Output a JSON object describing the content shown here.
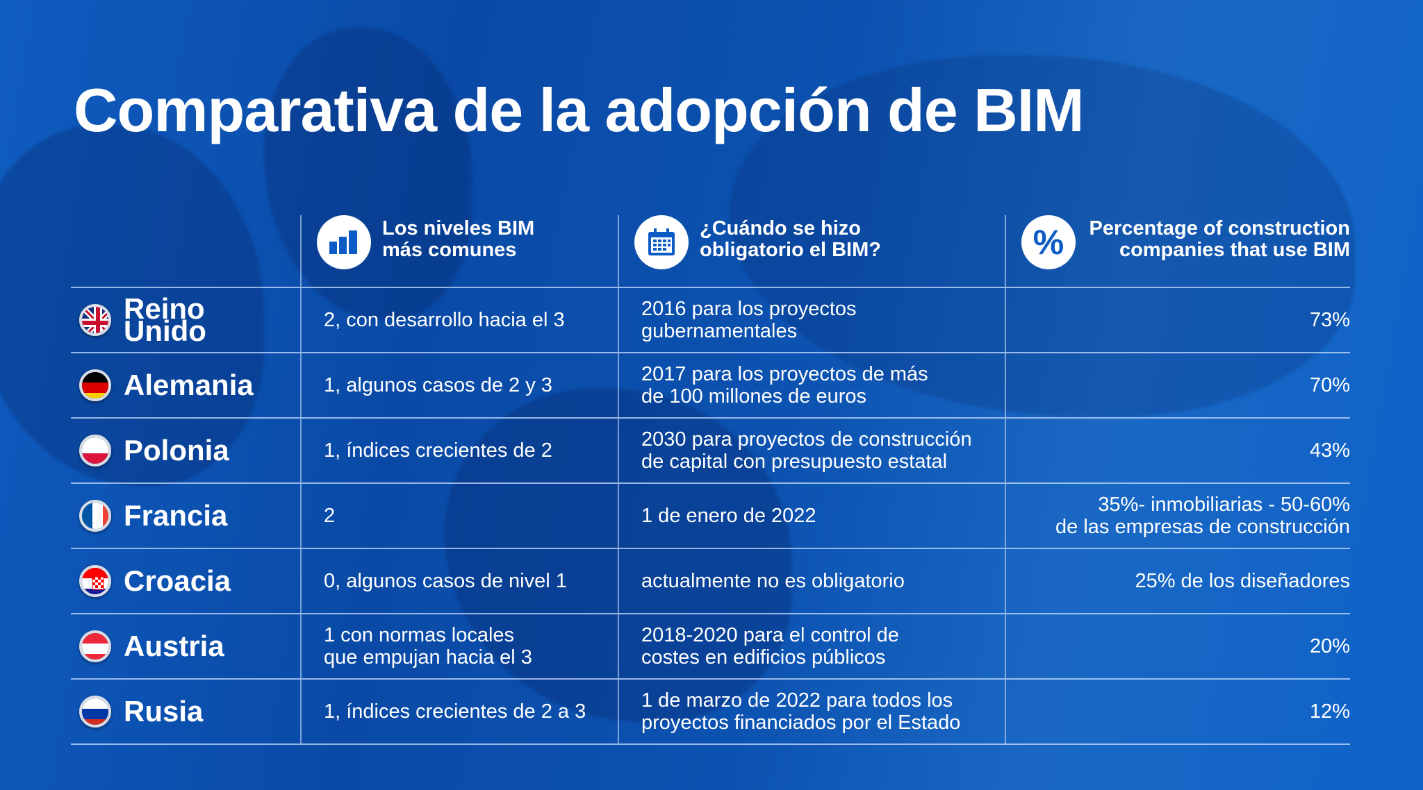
{
  "title": "Comparativa de la adopción de BIM",
  "headers": [
    {
      "label": "Los niveles BIM\nmás comunes",
      "icon": "bar-chart-icon"
    },
    {
      "label": "¿Cuándo se hizo\nobligatorio el BIM?",
      "icon": "calendar-icon"
    },
    {
      "label": "Percentage of construction\ncompanies that use BIM",
      "icon": "percent-icon"
    }
  ],
  "rows": [
    {
      "country": "Reino Unido",
      "levels": "2, con desarrollo hacia el 3",
      "mandatory": "2016 para los proyectos\ngubernamentales",
      "percent": "73%"
    },
    {
      "country": "Alemania",
      "levels": "1, algunos casos de 2 y 3",
      "mandatory": "2017 para los proyectos de más\nde 100 millones de euros",
      "percent": "70%"
    },
    {
      "country": "Polonia",
      "levels": "1, índices crecientes de 2",
      "mandatory": "2030 para proyectos de construcción\nde capital con presupuesto estatal",
      "percent": "43%"
    },
    {
      "country": "Francia",
      "levels": "2",
      "mandatory": "1 de enero de 2022",
      "percent": "35%- inmobiliarias - 50-60%\nde las empresas de construcción"
    },
    {
      "country": "Croacia",
      "levels": "0, algunos casos de nivel 1",
      "mandatory": "actualmente no es obligatorio",
      "percent": "25% de los diseñadores"
    },
    {
      "country": "Austria",
      "levels": "1 con normas locales\nque empujan hacia el 3",
      "mandatory": "2018-2020 para el control de\ncostes en edificios públicos",
      "percent": "20%"
    },
    {
      "country": "Rusia",
      "levels": "1, índices crecientes de 2 a 3",
      "mandatory": "1 de marzo de 2022 para todos los\nproyectos financiados por el Estado",
      "percent": "12%"
    }
  ]
}
